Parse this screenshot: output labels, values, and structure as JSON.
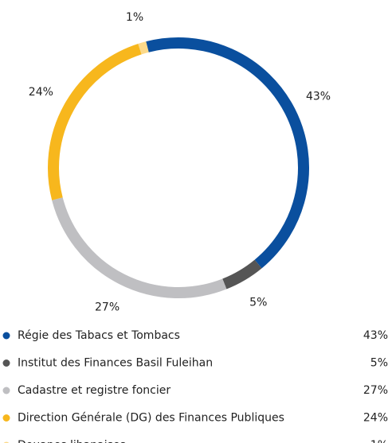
{
  "chart_data": {
    "type": "donut",
    "categories": [
      "Régie des Tabacs et Tombacs",
      "Institut des Finances Basil Fuleihan",
      "Cadastre et registre foncier",
      "Direction Générale (DG) des Finances Publiques",
      "Douanes libanaises"
    ],
    "values": [
      43,
      5,
      27,
      24,
      1
    ],
    "value_labels": [
      "43%",
      "5%",
      "27%",
      "24%",
      "1%"
    ],
    "colors": [
      "#0a4f9e",
      "#555555",
      "#bfbfc2",
      "#f7b71d",
      "#fbd98a"
    ],
    "legend": "bottom"
  }
}
